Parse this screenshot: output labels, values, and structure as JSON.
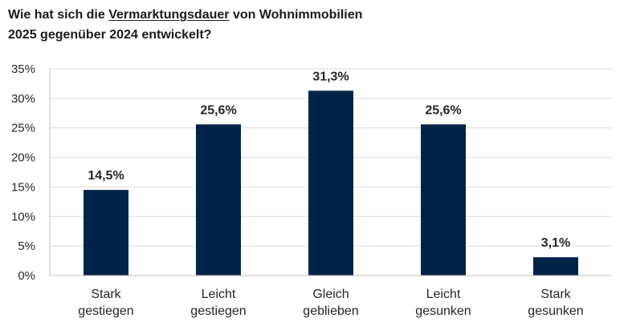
{
  "title": {
    "part1": "Wie hat sich die ",
    "underlined": "Vermarktungsdauer",
    "part2": " von Wohnimmobilien",
    "line2": "2025 gegenüber 2024 entwickelt?"
  },
  "chart_data": {
    "type": "bar",
    "title": "Wie hat sich die Vermarktungsdauer von Wohnimmobilien 2025 gegenüber 2024 entwickelt?",
    "categories": [
      [
        "Stark",
        "gestiegen"
      ],
      [
        "Leicht",
        "gestiegen"
      ],
      [
        "Gleich",
        "geblieben"
      ],
      [
        "Leicht",
        "gesunken"
      ],
      [
        "Stark",
        "gesunken"
      ]
    ],
    "values": [
      14.5,
      25.6,
      31.3,
      25.6,
      3.1
    ],
    "value_labels": [
      "14,5%",
      "25,6%",
      "31,3%",
      "25,6%",
      "3,1%"
    ],
    "y_ticks": [
      0,
      5,
      10,
      15,
      20,
      25,
      30,
      35
    ],
    "y_tick_labels": [
      "0%",
      "5%",
      "10%",
      "15%",
      "20%",
      "25%",
      "30%",
      "35%"
    ],
    "ylim": [
      0,
      35
    ],
    "grid": true,
    "bar_color": "#002447",
    "grid_color": "#d9d9d9",
    "axis_color": "#bfbfbf"
  }
}
